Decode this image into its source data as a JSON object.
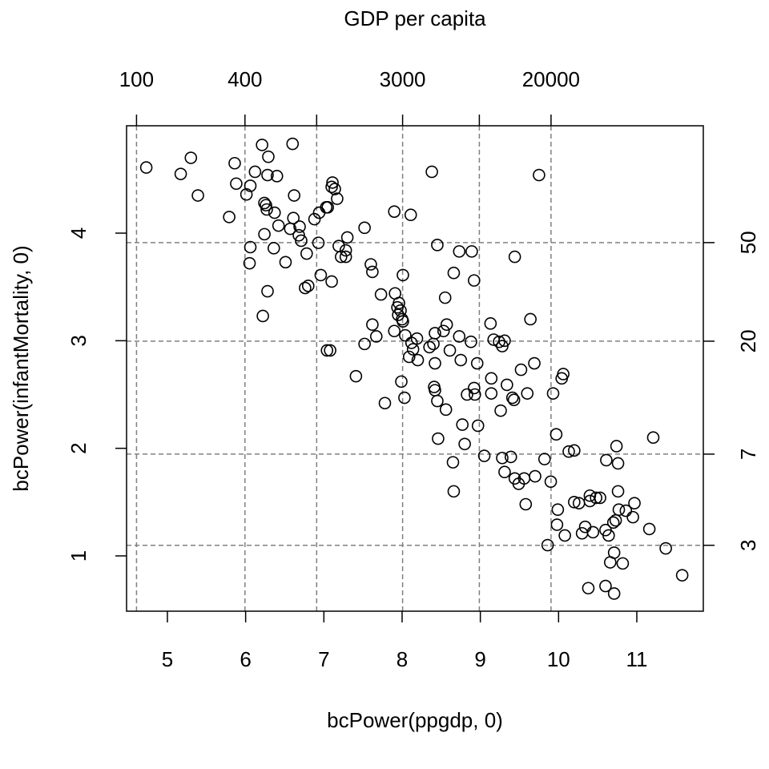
{
  "chart_data": {
    "type": "scatter",
    "x2label": "GDP per capita",
    "xlabel": "bcPower(ppgdp, 0)",
    "ylabel": "bcPower(infantMortality, 0)",
    "xlim": [
      4.478,
      11.85
    ],
    "ylim": [
      0.486,
      4.998
    ],
    "xticks": [
      5,
      6,
      7,
      8,
      9,
      10,
      11
    ],
    "yticks": [
      1,
      2,
      3,
      4
    ],
    "x2scale": "log",
    "y2scale": "log",
    "x2ticks": [
      100,
      400,
      {
        "value": 1000,
        "label": null
      },
      3000,
      {
        "value": 8000,
        "label": null
      },
      20000
    ],
    "y2ticks": [
      3,
      7,
      20,
      50
    ],
    "grid": true,
    "color": "#000000",
    "x": [
      4.73,
      5.17,
      5.3,
      5.39,
      5.79,
      5.86,
      5.88,
      6.01,
      6.06,
      6.12,
      6.06,
      6.05,
      6.21,
      6.29,
      6.28,
      6.4,
      6.6,
      6.24,
      6.27,
      6.26,
      6.37,
      6.24,
      6.36,
      6.42,
      6.62,
      6.61,
      6.57,
      6.69,
      6.68,
      6.71,
      6.51,
      6.78,
      6.28,
      6.22,
      6.76,
      6.8,
      6.96,
      7.1,
      6.88,
      6.94,
      6.93,
      7.03,
      7.05,
      7.11,
      7.1,
      7.14,
      7.17,
      7.19,
      7.22,
      7.28,
      7.28,
      7.3,
      7.04,
      7.08,
      7.41,
      7.52,
      7.52,
      7.6,
      7.62,
      7.62,
      7.67,
      7.73,
      7.78,
      7.9,
      7.91,
      7.94,
      7.96,
      7.95,
      7.98,
      8.0,
      8.01,
      7.9,
      8.01,
      7.99,
      8.03,
      8.04,
      8.11,
      8.38,
      8.12,
      8.09,
      8.14,
      8.19,
      8.2,
      8.35,
      8.4,
      8.42,
      8.42,
      8.41,
      8.42,
      8.45,
      8.45,
      8.46,
      8.53,
      8.55,
      8.57,
      8.56,
      8.61,
      8.66,
      8.65,
      8.66,
      8.73,
      8.73,
      8.75,
      8.77,
      8.8,
      8.83,
      8.89,
      8.92,
      8.88,
      8.92,
      8.93,
      8.96,
      8.97,
      9.05,
      9.13,
      9.14,
      9.14,
      9.17,
      9.24,
      9.28,
      9.31,
      9.26,
      9.28,
      9.31,
      9.34,
      9.41,
      9.43,
      9.39,
      9.44,
      9.44,
      9.49,
      9.52,
      9.56,
      9.58,
      9.6,
      9.64,
      9.69,
      9.7,
      9.75,
      9.82,
      9.86,
      9.9,
      9.93,
      9.97,
      9.99,
      9.98,
      10.04,
      10.06,
      10.08,
      10.13,
      10.2,
      10.2,
      10.26,
      10.3,
      10.34,
      10.38,
      10.4,
      10.4,
      10.44,
      10.48,
      10.53,
      10.6,
      10.6,
      10.61,
      10.64,
      10.66,
      10.71,
      10.7,
      10.73,
      10.71,
      10.74,
      10.76,
      10.76,
      10.77,
      10.82,
      10.86,
      10.95,
      10.97,
      11.16,
      11.21,
      11.37,
      11.58
    ],
    "y": [
      4.61,
      4.55,
      4.7,
      4.35,
      4.15,
      4.65,
      4.46,
      4.36,
      4.44,
      4.57,
      3.87,
      3.72,
      4.82,
      4.71,
      4.54,
      4.53,
      4.83,
      4.28,
      4.22,
      4.26,
      4.19,
      3.99,
      3.86,
      4.07,
      4.35,
      4.14,
      4.04,
      4.06,
      3.98,
      3.93,
      3.73,
      3.81,
      3.46,
      3.23,
      3.49,
      3.51,
      3.61,
      3.55,
      4.13,
      4.19,
      3.91,
      4.24,
      4.24,
      4.47,
      4.43,
      4.41,
      4.32,
      3.88,
      3.78,
      3.84,
      3.78,
      3.96,
      2.91,
      2.91,
      2.67,
      4.05,
      2.97,
      3.71,
      3.64,
      3.15,
      3.04,
      3.43,
      2.42,
      4.2,
      3.44,
      3.31,
      3.35,
      3.24,
      3.28,
      3.2,
      3.18,
      3.09,
      3.61,
      2.62,
      2.47,
      3.05,
      4.17,
      4.57,
      2.98,
      2.85,
      2.92,
      3.02,
      2.82,
      2.94,
      2.97,
      3.07,
      2.79,
      2.57,
      2.54,
      3.89,
      2.44,
      2.09,
      3.09,
      3.4,
      3.15,
      2.36,
      2.91,
      3.63,
      1.87,
      1.6,
      3.83,
      3.04,
      2.82,
      2.22,
      2.04,
      2.5,
      3.83,
      3.56,
      2.99,
      2.56,
      2.5,
      2.79,
      2.21,
      1.93,
      3.16,
      2.65,
      2.51,
      3.01,
      2.99,
      2.95,
      3.0,
      2.35,
      1.91,
      1.78,
      2.59,
      2.47,
      2.45,
      1.92,
      3.78,
      1.72,
      1.67,
      2.73,
      1.72,
      1.48,
      2.51,
      3.2,
      2.79,
      1.74,
      4.54,
      1.9,
      1.1,
      1.69,
      2.51,
      2.13,
      1.43,
      1.29,
      2.65,
      2.69,
      1.19,
      1.97,
      1.98,
      1.5,
      1.49,
      1.21,
      1.27,
      0.7,
      1.51,
      1.56,
      1.22,
      1.54,
      1.54,
      0.72,
      1.24,
      1.89,
      1.19,
      0.94,
      1.03,
      1.31,
      1.33,
      0.65,
      2.02,
      1.86,
      1.6,
      1.43,
      0.93,
      1.42,
      1.36,
      1.49,
      1.25,
      2.1,
      1.07,
      0.82
    ]
  }
}
